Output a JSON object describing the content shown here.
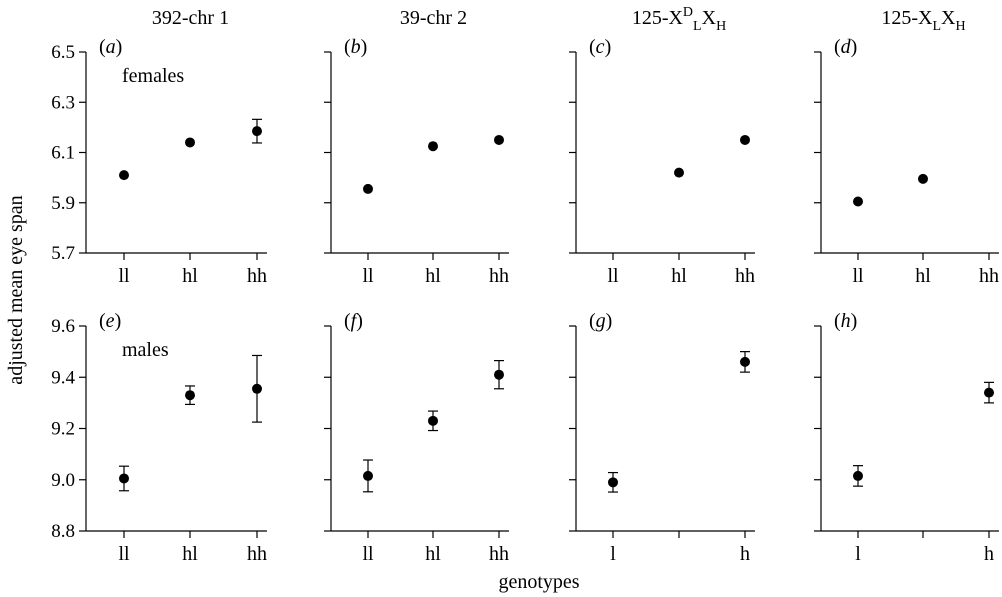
{
  "figure": {
    "ylabel": "adjusted mean eye span",
    "xlabel": "genotypes"
  },
  "chart_data": [
    {
      "type": "scatter",
      "panel_label": "a",
      "column_title": "392-chr 1",
      "annotation": "females",
      "categories": [
        "ll",
        "hl",
        "hh"
      ],
      "ylim": [
        5.7,
        6.5
      ],
      "yticks": [
        "5.7",
        "5.9",
        "6.1",
        "6.3",
        "6.5"
      ],
      "points": [
        {
          "category": "ll",
          "y": 6.01,
          "err": null
        },
        {
          "category": "hl",
          "y": 6.14,
          "err": null
        },
        {
          "category": "hh",
          "y": 6.185,
          "err": 0.047
        }
      ]
    },
    {
      "type": "scatter",
      "panel_label": "b",
      "column_title": "39-chr 2",
      "annotation": "",
      "categories": [
        "ll",
        "hl",
        "hh"
      ],
      "ylim": [
        5.7,
        6.5
      ],
      "yticks": [
        "5.7",
        "5.9",
        "6.1",
        "6.3",
        "6.5"
      ],
      "points": [
        {
          "category": "ll",
          "y": 5.955,
          "err": null
        },
        {
          "category": "hl",
          "y": 6.125,
          "err": null
        },
        {
          "category": "hh",
          "y": 6.15,
          "err": null
        }
      ]
    },
    {
      "type": "scatter",
      "panel_label": "c",
      "column_title": "125-X^D_L X_H",
      "title_parts": {
        "base": "125-X",
        "sup": "D",
        "sub1": "L",
        "mid": "X",
        "sub2": "H"
      },
      "annotation": "",
      "categories": [
        "ll",
        "hl",
        "hh"
      ],
      "ylim": [
        5.7,
        6.5
      ],
      "yticks": [
        "5.7",
        "5.9",
        "6.1",
        "6.3",
        "6.5"
      ],
      "points": [
        {
          "category": "hl",
          "y": 6.02,
          "err": null
        },
        {
          "category": "hh",
          "y": 6.15,
          "err": null
        }
      ]
    },
    {
      "type": "scatter",
      "panel_label": "d",
      "column_title": "125-X_L X_H",
      "title_parts": {
        "base": "125-X",
        "sup": "",
        "sub1": "L",
        "mid": "X",
        "sub2": "H"
      },
      "annotation": "",
      "categories": [
        "ll",
        "hl",
        "hh"
      ],
      "ylim": [
        5.7,
        6.5
      ],
      "yticks": [
        "5.7",
        "5.9",
        "6.1",
        "6.3",
        "6.5"
      ],
      "points": [
        {
          "category": "ll",
          "y": 5.905,
          "err": null
        },
        {
          "category": "hl",
          "y": 5.995,
          "err": null
        }
      ]
    },
    {
      "type": "scatter",
      "panel_label": "e",
      "annotation": "males",
      "categories": [
        "ll",
        "hl",
        "hh"
      ],
      "ylim": [
        8.8,
        9.6
      ],
      "yticks": [
        "8.8",
        "9.0",
        "9.2",
        "9.4",
        "9.6"
      ],
      "points": [
        {
          "category": "ll",
          "y": 9.005,
          "err": 0.048
        },
        {
          "category": "hl",
          "y": 9.33,
          "err": 0.036
        },
        {
          "category": "hh",
          "y": 9.355,
          "err": 0.13
        }
      ]
    },
    {
      "type": "scatter",
      "panel_label": "f",
      "annotation": "",
      "categories": [
        "ll",
        "hl",
        "hh"
      ],
      "ylim": [
        8.8,
        9.6
      ],
      "yticks": [
        "8.8",
        "9.0",
        "9.2",
        "9.4",
        "9.6"
      ],
      "points": [
        {
          "category": "ll",
          "y": 9.015,
          "err": 0.062
        },
        {
          "category": "hl",
          "y": 9.23,
          "err": 0.038
        },
        {
          "category": "hh",
          "y": 9.41,
          "err": 0.055
        }
      ]
    },
    {
      "type": "scatter",
      "panel_label": "g",
      "annotation": "",
      "categories": [
        "l",
        "",
        "h"
      ],
      "ylim": [
        8.8,
        9.6
      ],
      "yticks": [
        "8.8",
        "9.0",
        "9.2",
        "9.4",
        "9.6"
      ],
      "points": [
        {
          "category": "l",
          "y": 8.99,
          "err": 0.038
        },
        {
          "category": "h",
          "y": 9.46,
          "err": 0.04
        }
      ]
    },
    {
      "type": "scatter",
      "panel_label": "h",
      "annotation": "",
      "categories": [
        "l",
        "",
        "h"
      ],
      "ylim": [
        8.8,
        9.6
      ],
      "yticks": [
        "8.8",
        "9.0",
        "9.2",
        "9.4",
        "9.6"
      ],
      "points": [
        {
          "category": "l",
          "y": 9.015,
          "err": 0.04
        },
        {
          "category": "h",
          "y": 9.34,
          "err": 0.04
        }
      ]
    }
  ]
}
